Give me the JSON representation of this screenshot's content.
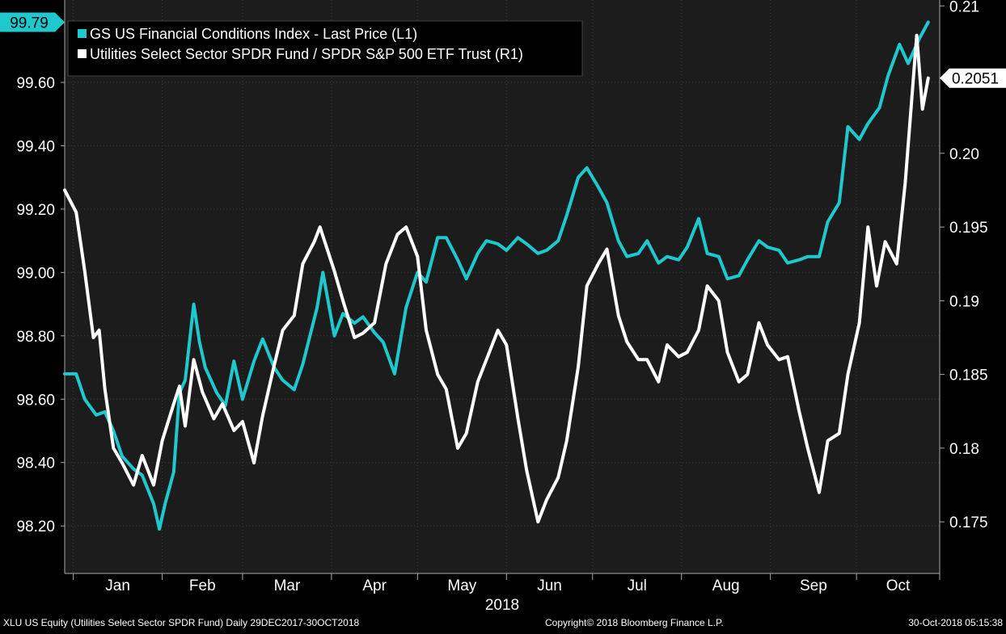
{
  "chart_data": {
    "type": "line",
    "axes": {
      "left": {
        "ticks": [
          "98.20",
          "98.40",
          "98.60",
          "98.80",
          "99.00",
          "99.20",
          "99.40",
          "99.60"
        ],
        "ylim": [
          98.05,
          99.86
        ]
      },
      "right": {
        "ticks": [
          "0.175",
          "0.18",
          "0.185",
          "0.19",
          "0.195",
          "0.20",
          "0.21"
        ],
        "ylim": [
          0.1715,
          0.2104
        ]
      },
      "x": {
        "month_labels": [
          "Jan",
          "Feb",
          "Mar",
          "Apr",
          "May",
          "Jun",
          "Jul",
          "Aug",
          "Sep",
          "Oct"
        ],
        "year_label": "2018",
        "range": [
          "2017-12-29",
          "2018-10-30"
        ]
      }
    },
    "legend": {
      "placement": "top-left"
    },
    "series": [
      {
        "name": "GS US Financial Conditions Index - Last Price (L1)",
        "axis": "left",
        "color": "#1ec8cc",
        "last_value_label": "99.79",
        "points": [
          [
            "2017-12-29",
            98.68
          ],
          [
            "2018-01-02",
            98.68
          ],
          [
            "2018-01-05",
            98.6
          ],
          [
            "2018-01-09",
            98.55
          ],
          [
            "2018-01-12",
            98.56
          ],
          [
            "2018-01-15",
            98.5
          ],
          [
            "2018-01-18",
            98.42
          ],
          [
            "2018-01-22",
            98.38
          ],
          [
            "2018-01-25",
            98.36
          ],
          [
            "2018-01-29",
            98.27
          ],
          [
            "2018-01-31",
            98.19
          ],
          [
            "2018-02-02",
            98.27
          ],
          [
            "2018-02-05",
            98.37
          ],
          [
            "2018-02-07",
            98.62
          ],
          [
            "2018-02-09",
            98.66
          ],
          [
            "2018-02-12",
            98.9
          ],
          [
            "2018-02-14",
            98.78
          ],
          [
            "2018-02-16",
            98.7
          ],
          [
            "2018-02-20",
            98.62
          ],
          [
            "2018-02-23",
            98.58
          ],
          [
            "2018-02-26",
            98.72
          ],
          [
            "2018-03-01",
            98.6
          ],
          [
            "2018-03-05",
            98.72
          ],
          [
            "2018-03-08",
            98.79
          ],
          [
            "2018-03-12",
            98.7
          ],
          [
            "2018-03-15",
            98.66
          ],
          [
            "2018-03-19",
            98.63
          ],
          [
            "2018-03-22",
            98.71
          ],
          [
            "2018-03-27",
            98.89
          ],
          [
            "2018-03-29",
            99.0
          ],
          [
            "2018-04-02",
            98.8
          ],
          [
            "2018-04-05",
            98.87
          ],
          [
            "2018-04-09",
            98.84
          ],
          [
            "2018-04-12",
            98.86
          ],
          [
            "2018-04-16",
            98.81
          ],
          [
            "2018-04-19",
            98.78
          ],
          [
            "2018-04-23",
            98.68
          ],
          [
            "2018-04-27",
            98.89
          ],
          [
            "2018-05-01",
            99.0
          ],
          [
            "2018-05-04",
            98.97
          ],
          [
            "2018-05-08",
            99.11
          ],
          [
            "2018-05-11",
            99.11
          ],
          [
            "2018-05-15",
            99.04
          ],
          [
            "2018-05-18",
            98.98
          ],
          [
            "2018-05-22",
            99.06
          ],
          [
            "2018-05-25",
            99.1
          ],
          [
            "2018-05-29",
            99.09
          ],
          [
            "2018-06-01",
            99.07
          ],
          [
            "2018-06-05",
            99.11
          ],
          [
            "2018-06-08",
            99.09
          ],
          [
            "2018-06-12",
            99.06
          ],
          [
            "2018-06-15",
            99.07
          ],
          [
            "2018-06-19",
            99.1
          ],
          [
            "2018-06-22",
            99.18
          ],
          [
            "2018-06-26",
            99.3
          ],
          [
            "2018-06-29",
            99.33
          ],
          [
            "2018-07-03",
            99.27
          ],
          [
            "2018-07-06",
            99.22
          ],
          [
            "2018-07-10",
            99.1
          ],
          [
            "2018-07-13",
            99.05
          ],
          [
            "2018-07-17",
            99.06
          ],
          [
            "2018-07-20",
            99.1
          ],
          [
            "2018-07-24",
            99.03
          ],
          [
            "2018-07-27",
            99.05
          ],
          [
            "2018-07-31",
            99.04
          ],
          [
            "2018-08-03",
            99.08
          ],
          [
            "2018-08-07",
            99.17
          ],
          [
            "2018-08-10",
            99.06
          ],
          [
            "2018-08-14",
            99.05
          ],
          [
            "2018-08-17",
            98.98
          ],
          [
            "2018-08-21",
            98.99
          ],
          [
            "2018-08-24",
            99.04
          ],
          [
            "2018-08-28",
            99.1
          ],
          [
            "2018-08-31",
            99.08
          ],
          [
            "2018-09-04",
            99.07
          ],
          [
            "2018-09-07",
            99.03
          ],
          [
            "2018-09-11",
            99.04
          ],
          [
            "2018-09-14",
            99.05
          ],
          [
            "2018-09-18",
            99.05
          ],
          [
            "2018-09-21",
            99.16
          ],
          [
            "2018-09-25",
            99.22
          ],
          [
            "2018-09-28",
            99.46
          ],
          [
            "2018-10-02",
            99.42
          ],
          [
            "2018-10-05",
            99.47
          ],
          [
            "2018-10-09",
            99.52
          ],
          [
            "2018-10-12",
            99.62
          ],
          [
            "2018-10-16",
            99.72
          ],
          [
            "2018-10-19",
            99.66
          ],
          [
            "2018-10-23",
            99.74
          ],
          [
            "2018-10-26",
            99.79
          ]
        ]
      },
      {
        "name": "Utilities Select Sector SPDR Fund / SPDR S&P 500 ETF Trust (R1)",
        "axis": "right",
        "color": "#ffffff",
        "last_value_label": "0.2051",
        "points": [
          [
            "2017-12-29",
            0.1975
          ],
          [
            "2018-01-02",
            0.196
          ],
          [
            "2018-01-05",
            0.192
          ],
          [
            "2018-01-08",
            0.1875
          ],
          [
            "2018-01-10",
            0.188
          ],
          [
            "2018-01-12",
            0.184
          ],
          [
            "2018-01-15",
            0.18
          ],
          [
            "2018-01-18",
            0.179
          ],
          [
            "2018-01-22",
            0.1775
          ],
          [
            "2018-01-25",
            0.1795
          ],
          [
            "2018-01-29",
            0.1775
          ],
          [
            "2018-02-01",
            0.1805
          ],
          [
            "2018-02-05",
            0.183
          ],
          [
            "2018-02-07",
            0.1842
          ],
          [
            "2018-02-09",
            0.1815
          ],
          [
            "2018-02-12",
            0.186
          ],
          [
            "2018-02-15",
            0.1838
          ],
          [
            "2018-02-19",
            0.182
          ],
          [
            "2018-02-22",
            0.183
          ],
          [
            "2018-02-26",
            0.1812
          ],
          [
            "2018-03-01",
            0.1818
          ],
          [
            "2018-03-05",
            0.179
          ],
          [
            "2018-03-08",
            0.1822
          ],
          [
            "2018-03-12",
            0.1856
          ],
          [
            "2018-03-15",
            0.188
          ],
          [
            "2018-03-19",
            0.189
          ],
          [
            "2018-03-22",
            0.1925
          ],
          [
            "2018-03-26",
            0.194
          ],
          [
            "2018-03-28",
            0.195
          ],
          [
            "2018-04-02",
            0.192
          ],
          [
            "2018-04-05",
            0.19
          ],
          [
            "2018-04-09",
            0.1875
          ],
          [
            "2018-04-12",
            0.1878
          ],
          [
            "2018-04-16",
            0.1885
          ],
          [
            "2018-04-20",
            0.1925
          ],
          [
            "2018-04-24",
            0.1945
          ],
          [
            "2018-04-27",
            0.195
          ],
          [
            "2018-05-01",
            0.193
          ],
          [
            "2018-05-04",
            0.188
          ],
          [
            "2018-05-08",
            0.185
          ],
          [
            "2018-05-11",
            0.184
          ],
          [
            "2018-05-15",
            0.18
          ],
          [
            "2018-05-18",
            0.181
          ],
          [
            "2018-05-22",
            0.1845
          ],
          [
            "2018-05-25",
            0.186
          ],
          [
            "2018-05-29",
            0.188
          ],
          [
            "2018-06-01",
            0.187
          ],
          [
            "2018-06-05",
            0.182
          ],
          [
            "2018-06-08",
            0.1785
          ],
          [
            "2018-06-12",
            0.175
          ],
          [
            "2018-06-15",
            0.1765
          ],
          [
            "2018-06-19",
            0.178
          ],
          [
            "2018-06-22",
            0.1805
          ],
          [
            "2018-06-26",
            0.1855
          ],
          [
            "2018-06-29",
            0.191
          ],
          [
            "2018-07-03",
            0.1925
          ],
          [
            "2018-07-06",
            0.1935
          ],
          [
            "2018-07-10",
            0.189
          ],
          [
            "2018-07-13",
            0.1872
          ],
          [
            "2018-07-17",
            0.186
          ],
          [
            "2018-07-20",
            0.186
          ],
          [
            "2018-07-24",
            0.1845
          ],
          [
            "2018-07-27",
            0.187
          ],
          [
            "2018-07-31",
            0.1862
          ],
          [
            "2018-08-03",
            0.1865
          ],
          [
            "2018-08-07",
            0.188
          ],
          [
            "2018-08-10",
            0.191
          ],
          [
            "2018-08-14",
            0.19
          ],
          [
            "2018-08-17",
            0.1865
          ],
          [
            "2018-08-21",
            0.1845
          ],
          [
            "2018-08-24",
            0.185
          ],
          [
            "2018-08-28",
            0.1885
          ],
          [
            "2018-08-31",
            0.187
          ],
          [
            "2018-09-04",
            0.186
          ],
          [
            "2018-09-07",
            0.1862
          ],
          [
            "2018-09-11",
            0.1825
          ],
          [
            "2018-09-14",
            0.18
          ],
          [
            "2018-09-18",
            0.177
          ],
          [
            "2018-09-21",
            0.1805
          ],
          [
            "2018-09-25",
            0.181
          ],
          [
            "2018-09-28",
            0.185
          ],
          [
            "2018-10-02",
            0.1885
          ],
          [
            "2018-10-05",
            0.195
          ],
          [
            "2018-10-08",
            0.191
          ],
          [
            "2018-10-11",
            0.194
          ],
          [
            "2018-10-15",
            0.1925
          ],
          [
            "2018-10-18",
            0.198
          ],
          [
            "2018-10-22",
            0.208
          ],
          [
            "2018-10-24",
            0.203
          ],
          [
            "2018-10-26",
            0.2051
          ]
        ]
      }
    ]
  },
  "footer": {
    "ticker": "XLU US Equity (Utilities Select Sector SPDR Fund)  Daily 29DEC2017-30OCT2018",
    "copyright": "Copyright© 2018 Bloomberg Finance L.P.",
    "timestamp": "30-Oct-2018 05:15:38"
  }
}
